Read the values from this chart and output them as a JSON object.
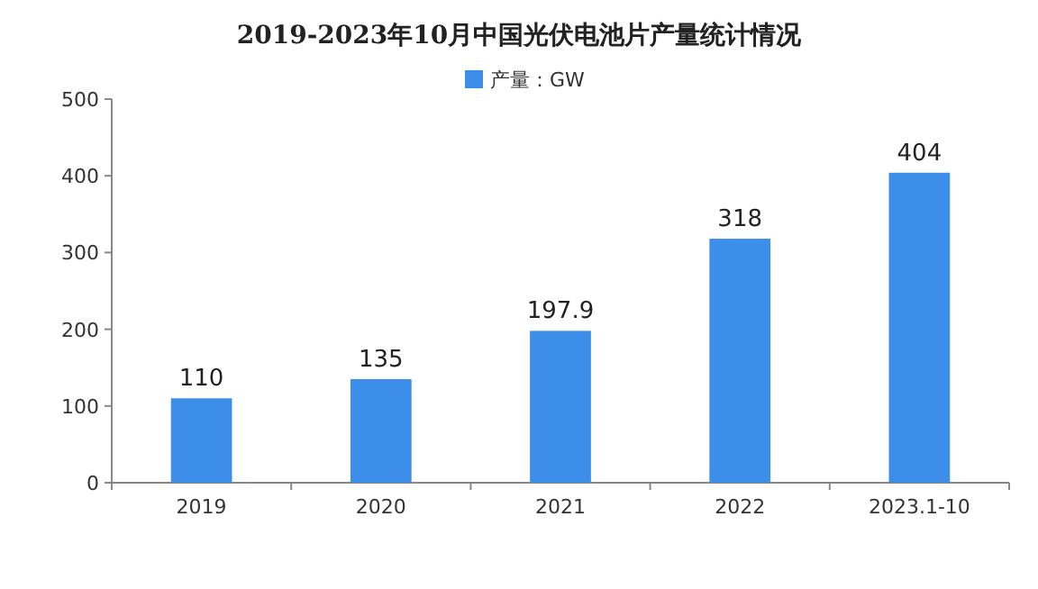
{
  "chart_data": {
    "type": "bar",
    "title": "2019-2023年10月中国光伏电池片产量统计情况",
    "categories": [
      "2019",
      "2020",
      "2021",
      "2022",
      "2023.1-10"
    ],
    "series": [
      {
        "name": "产量：GW",
        "color": "#3d8ee8",
        "values": [
          110,
          135,
          197.9,
          318,
          404
        ]
      }
    ],
    "ylim": [
      0,
      500
    ],
    "yticks": [
      0,
      100,
      200,
      300,
      400,
      500
    ],
    "grid": false,
    "legend": "top",
    "data_labels": true
  }
}
